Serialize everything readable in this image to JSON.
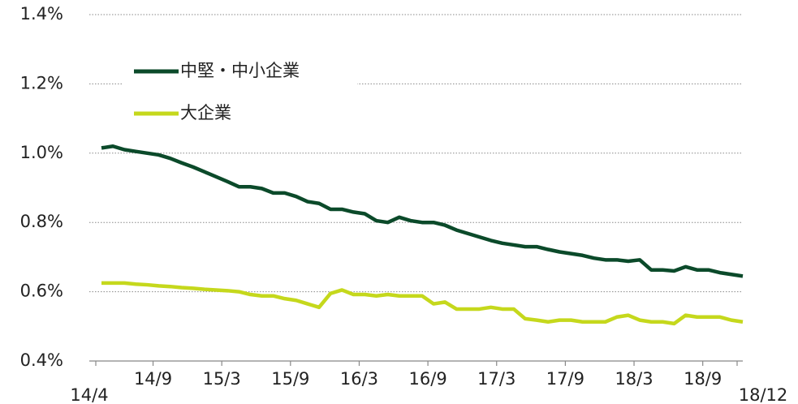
{
  "chart_data": {
    "type": "line",
    "categories": [
      "14/4",
      null,
      null,
      null,
      null,
      "14/9",
      null,
      null,
      null,
      null,
      null,
      "15/3",
      null,
      null,
      null,
      null,
      null,
      "15/9",
      null,
      null,
      null,
      null,
      null,
      "16/3",
      null,
      null,
      null,
      null,
      null,
      "16/9",
      null,
      null,
      null,
      null,
      null,
      "17/3",
      null,
      null,
      null,
      null,
      null,
      "17/9",
      null,
      null,
      null,
      null,
      null,
      "18/3",
      null,
      null,
      null,
      null,
      null,
      "18/9",
      null,
      null,
      "18/12"
    ],
    "series": [
      {
        "name": "中堅・中小企業",
        "color": "#0b4a2a",
        "values": [
          1.015,
          1.02,
          1.01,
          1.005,
          1.0,
          0.995,
          0.985,
          0.972,
          0.96,
          0.946,
          0.932,
          0.918,
          0.903,
          0.903,
          0.898,
          0.885,
          0.885,
          0.875,
          0.86,
          0.855,
          0.838,
          0.838,
          0.83,
          0.825,
          0.805,
          0.8,
          0.815,
          0.805,
          0.8,
          0.8,
          0.792,
          0.778,
          0.768,
          0.758,
          0.748,
          0.74,
          0.735,
          0.73,
          0.73,
          0.722,
          0.715,
          0.71,
          0.705,
          0.697,
          0.692,
          0.692,
          0.688,
          0.692,
          0.663,
          0.663,
          0.66,
          0.672,
          0.663,
          0.663,
          0.655,
          0.65,
          0.645
        ]
      },
      {
        "name": "大企業",
        "color": "#c5d81c",
        "values": [
          0.625,
          0.625,
          0.625,
          0.622,
          0.62,
          0.617,
          0.615,
          0.612,
          0.61,
          0.607,
          0.605,
          0.603,
          0.6,
          0.592,
          0.588,
          0.588,
          0.58,
          0.575,
          0.565,
          0.555,
          0.595,
          0.605,
          0.592,
          0.592,
          0.588,
          0.592,
          0.588,
          0.588,
          0.588,
          0.565,
          0.57,
          0.55,
          0.55,
          0.55,
          0.555,
          0.55,
          0.55,
          0.522,
          0.518,
          0.513,
          0.518,
          0.518,
          0.513,
          0.513,
          0.513,
          0.527,
          0.532,
          0.518,
          0.513,
          0.513,
          0.508,
          0.532,
          0.527,
          0.527,
          0.527,
          0.518,
          0.513
        ]
      }
    ],
    "ylim": [
      0.4,
      1.4
    ],
    "yticks": [
      {
        "value": 0.4,
        "label": "0.4%"
      },
      {
        "value": 0.6,
        "label": "0.6%"
      },
      {
        "value": 0.8,
        "label": "0.8%"
      },
      {
        "value": 1.0,
        "label": "1.0%"
      },
      {
        "value": 1.2,
        "label": "1.2%"
      },
      {
        "value": 1.4,
        "label": "1.4%"
      }
    ],
    "grid": true,
    "legend": "upper left"
  }
}
